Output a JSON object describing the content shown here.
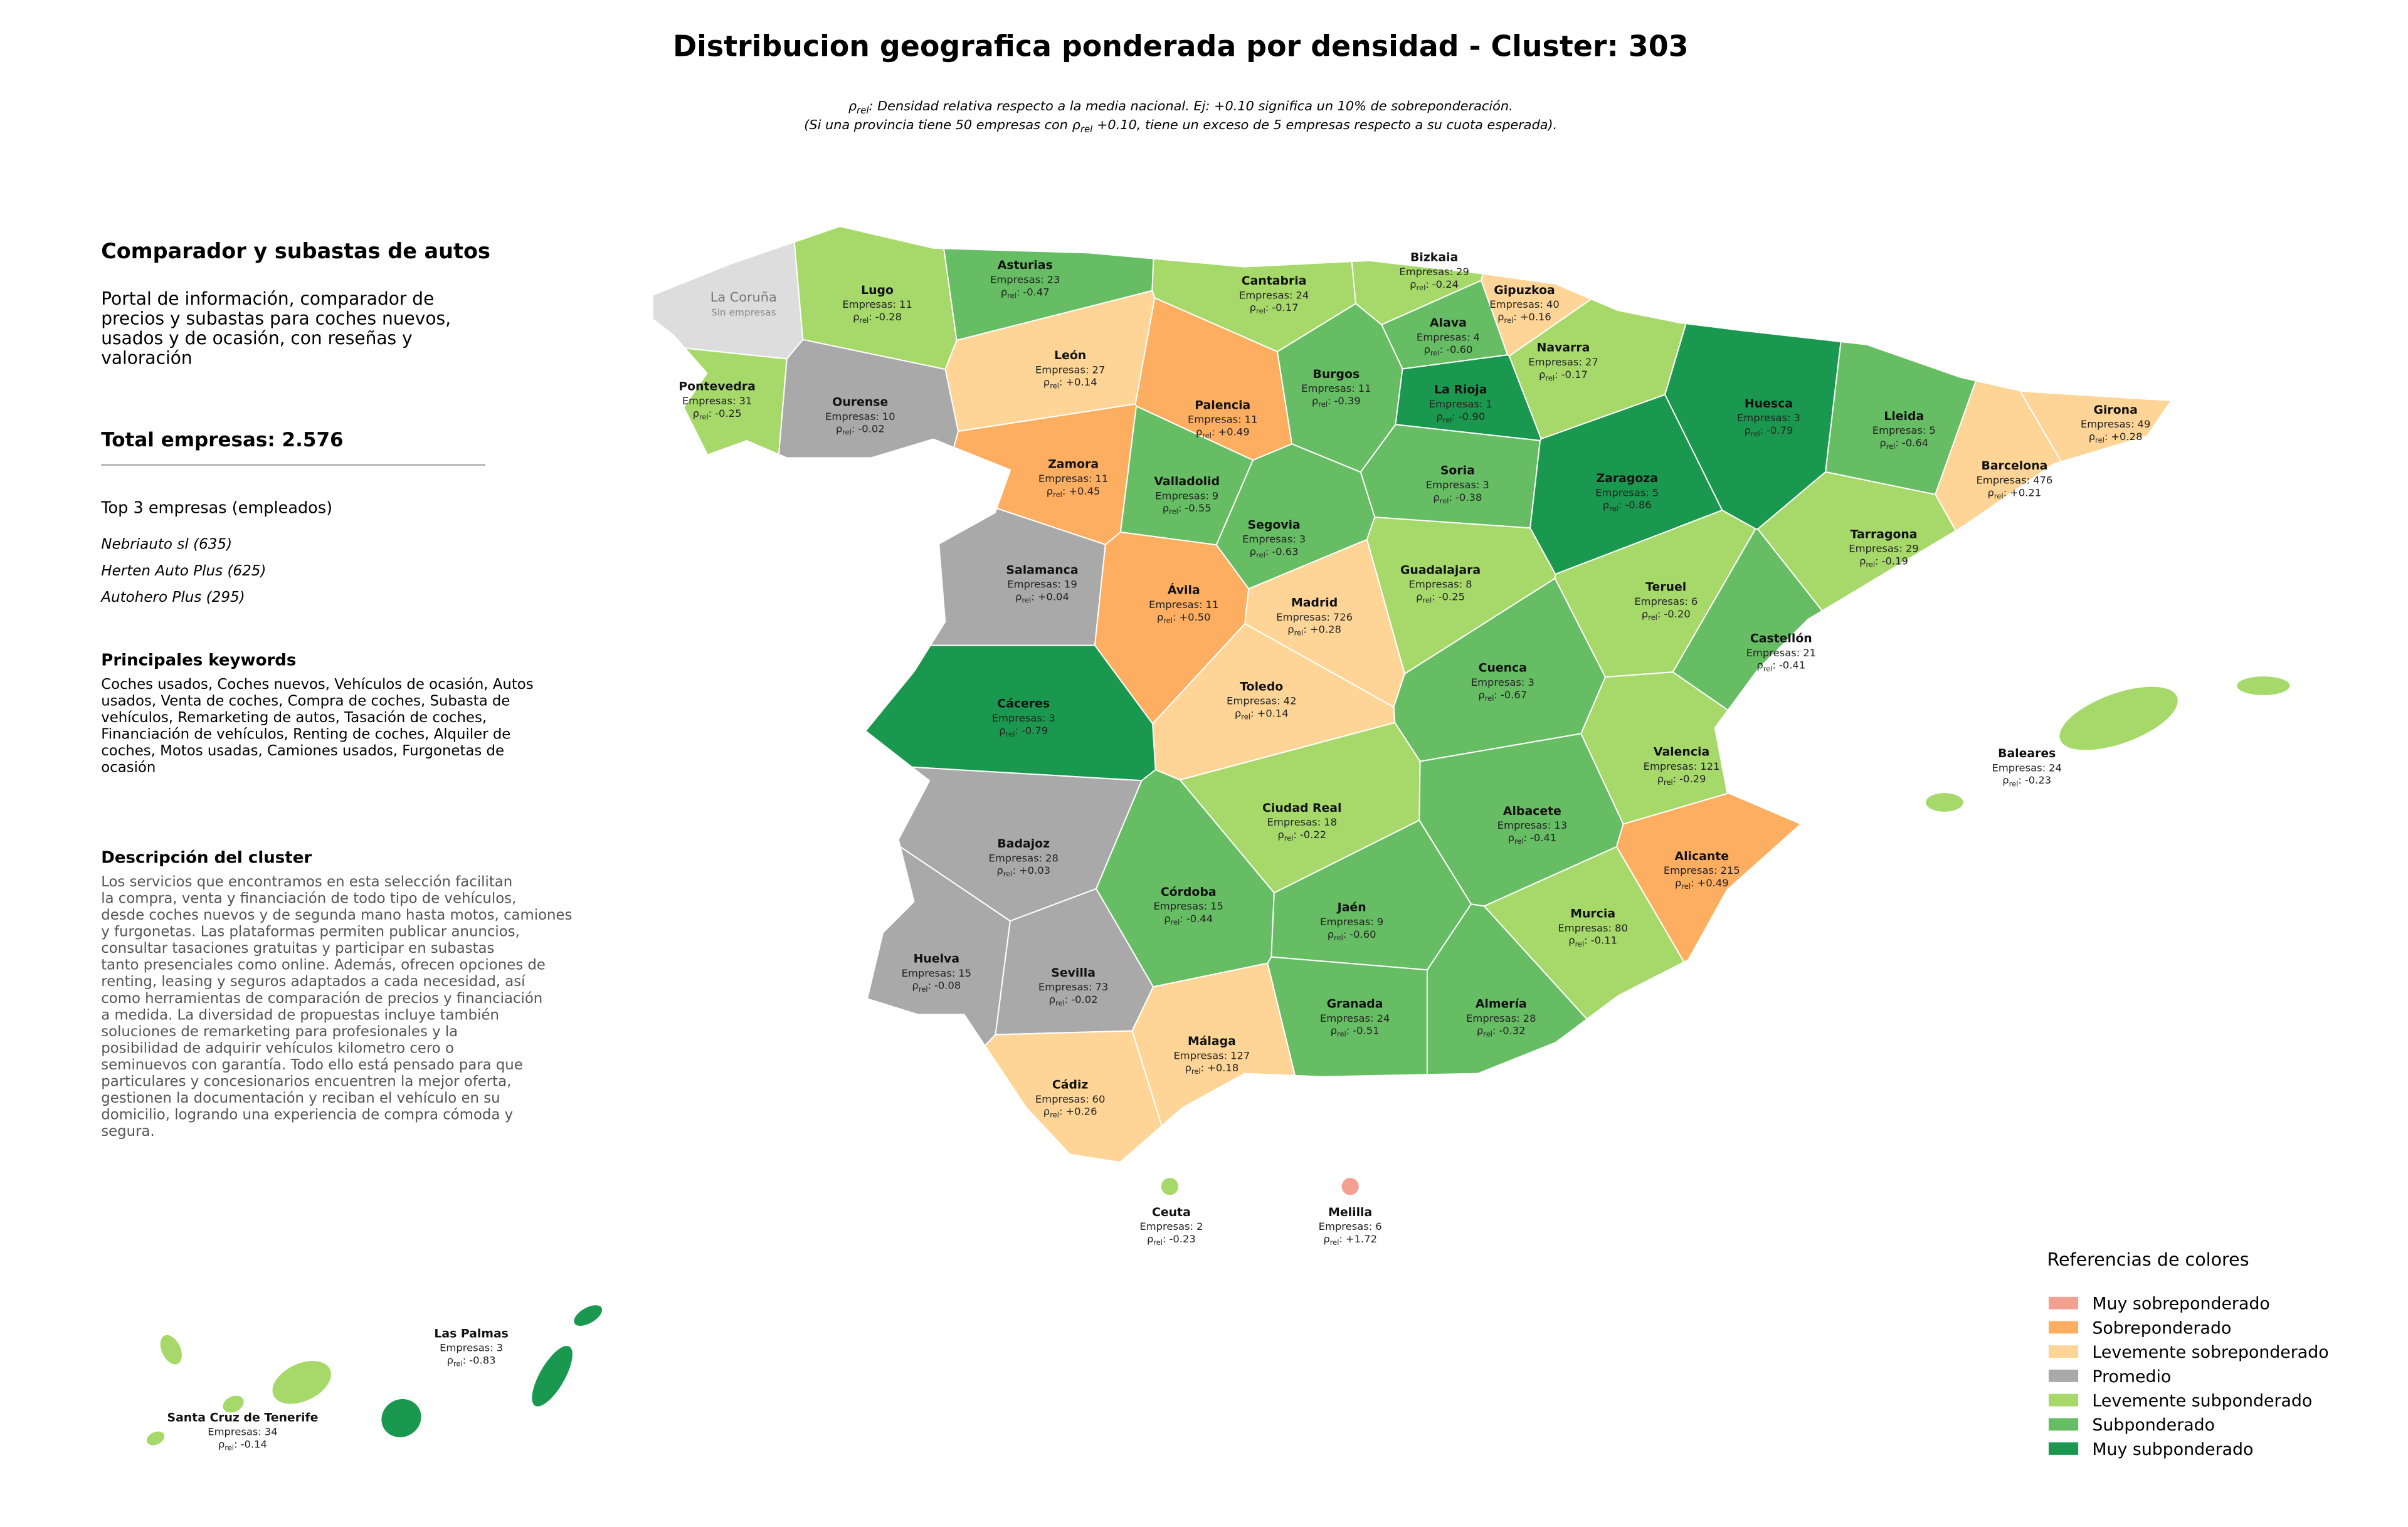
{
  "title": "Distribucion geografica ponderada por densidad - Cluster: 303",
  "symbols": {
    "rho": "ρ",
    "rel": "rel",
    "colon": ":",
    "empresas": "Empresas:"
  },
  "subtitle": {
    "line1_after": ": Densidad relativa respecto a la media nacional. Ej: +0.10 significa un 10% de sobreponderación.",
    "line2_before": "(Si una provincia tiene 50 empresas con ",
    "line2_after": " +0.10, tiene un exceso de 5 empresas respecto a su cuota esperada)."
  },
  "sidebar": {
    "heading": "Comparador y subastas de autos",
    "intro": [
      "Portal de información, comparador de",
      "precios y subastas para coches nuevos,",
      "usados y de ocasión, con reseñas y",
      "valoración"
    ],
    "total": "Total empresas: 2.576",
    "top_title": "Top 3 empresas (empleados)",
    "top": [
      "Nebriauto sl (635)",
      "Herten Auto Plus (625)",
      "Autohero Plus (295)"
    ],
    "keywords_title": "Principales keywords",
    "keywords": [
      "Coches usados, Coches nuevos, Vehículos de ocasión, Autos",
      "usados, Venta de coches, Compra de coches, Subasta de",
      "vehículos, Remarketing de autos, Tasación de coches,",
      "Financiación de vehículos, Renting de coches, Alquiler de",
      "coches, Motos usadas, Camiones usados, Furgonetas de",
      "ocasión"
    ],
    "description_title": "Descripción del cluster",
    "description": [
      "Los servicios que encontramos en esta selección facilitan",
      "la compra, venta y financiación de todo tipo de vehículos,",
      "desde coches nuevos y de segunda mano hasta motos, camiones",
      "y furgonetas. Las plataformas permiten publicar anuncios,",
      "consultar tasaciones gratuitas y participar en subastas",
      "tanto presenciales como online. Además, ofrecen opciones de",
      "renting, leasing y seguros adaptados a cada necesidad, así",
      "como herramientas de comparación de precios y financiación",
      "a medida. La diversidad de propuestas incluye también",
      "soluciones de remarketing para profesionales y la",
      "posibilidad de adquirir vehículos kilometro cero o",
      "seminuevos con garantía. Todo ello está pensado para que",
      "particulares y concesionarios encuentren la mejor oferta,",
      "gestionen la documentación y reciban el vehículo en su",
      "domicilio, logrando una experiencia de compra cómoda y",
      "segura."
    ]
  },
  "legend": {
    "title": "Referencias de colores",
    "items": [
      {
        "label": "Muy sobreponderado",
        "color": "#f4a091"
      },
      {
        "label": "Sobreponderado",
        "color": "#fdae61"
      },
      {
        "label": "Levemente sobreponderado",
        "color": "#fed596"
      },
      {
        "label": "Promedio",
        "color": "#a9a9a9"
      },
      {
        "label": "Levemente subponderado",
        "color": "#a6d96a"
      },
      {
        "label": "Subponderado",
        "color": "#66bd63"
      },
      {
        "label": "Muy subponderado",
        "color": "#1a9850"
      }
    ]
  },
  "provinces": [
    {
      "name": "La Coruña",
      "note": "Sin empresas",
      "color": "#dddddd"
    },
    {
      "name": "Lugo",
      "empresas": 11,
      "rho": "-0.28",
      "color": "#a6d96a"
    },
    {
      "name": "Asturias",
      "empresas": 23,
      "rho": "-0.47",
      "color": "#66bd63"
    },
    {
      "name": "Cantabria",
      "empresas": 24,
      "rho": "-0.17",
      "color": "#a6d96a"
    },
    {
      "name": "Bizkaia",
      "empresas": 29,
      "rho": "-0.24",
      "color": "#a6d96a"
    },
    {
      "name": "Gipuzkoa",
      "empresas": 40,
      "rho": "+0.16",
      "color": "#fed596"
    },
    {
      "name": "Alava",
      "empresas": 4,
      "rho": "-0.60",
      "color": "#66bd63"
    },
    {
      "name": "Navarra",
      "empresas": 27,
      "rho": "-0.17",
      "color": "#a6d96a"
    },
    {
      "name": "Pontevedra",
      "empresas": 31,
      "rho": "-0.25",
      "color": "#a6d96a"
    },
    {
      "name": "Ourense",
      "empresas": 10,
      "rho": "-0.02",
      "color": "#a9a9a9"
    },
    {
      "name": "León",
      "empresas": 27,
      "rho": "+0.14",
      "color": "#fed596"
    },
    {
      "name": "Palencia",
      "empresas": 11,
      "rho": "+0.49",
      "color": "#fdae61"
    },
    {
      "name": "Burgos",
      "empresas": 11,
      "rho": "-0.39",
      "color": "#66bd63"
    },
    {
      "name": "La Rioja",
      "empresas": 1,
      "rho": "-0.90",
      "color": "#1a9850"
    },
    {
      "name": "Huesca",
      "empresas": 3,
      "rho": "-0.79",
      "color": "#1a9850"
    },
    {
      "name": "Lleida",
      "empresas": 5,
      "rho": "-0.64",
      "color": "#66bd63"
    },
    {
      "name": "Girona",
      "empresas": 49,
      "rho": "+0.28",
      "color": "#fed596"
    },
    {
      "name": "Zamora",
      "empresas": 11,
      "rho": "+0.45",
      "color": "#fdae61"
    },
    {
      "name": "Valladolid",
      "empresas": 9,
      "rho": "-0.55",
      "color": "#66bd63"
    },
    {
      "name": "Soria",
      "empresas": 3,
      "rho": "-0.38",
      "color": "#66bd63"
    },
    {
      "name": "Zaragoza",
      "empresas": 5,
      "rho": "-0.86",
      "color": "#1a9850"
    },
    {
      "name": "Barcelona",
      "empresas": 476,
      "rho": "+0.21",
      "color": "#fed596"
    },
    {
      "name": "Segovia",
      "empresas": 3,
      "rho": "-0.63",
      "color": "#66bd63"
    },
    {
      "name": "Tarragona",
      "empresas": 29,
      "rho": "-0.19",
      "color": "#a6d96a"
    },
    {
      "name": "Salamanca",
      "empresas": 19,
      "rho": "+0.04",
      "color": "#a9a9a9"
    },
    {
      "name": "Guadalajara",
      "empresas": 8,
      "rho": "-0.25",
      "color": "#a6d96a"
    },
    {
      "name": "Ávila",
      "empresas": 11,
      "rho": "+0.50",
      "color": "#fdae61"
    },
    {
      "name": "Madrid",
      "empresas": 726,
      "rho": "+0.28",
      "color": "#fed596"
    },
    {
      "name": "Teruel",
      "empresas": 6,
      "rho": "-0.20",
      "color": "#a6d96a"
    },
    {
      "name": "Castellón",
      "empresas": 21,
      "rho": "-0.41",
      "color": "#66bd63"
    },
    {
      "name": "Cuenca",
      "empresas": 3,
      "rho": "-0.67",
      "color": "#66bd63"
    },
    {
      "name": "Toledo",
      "empresas": 42,
      "rho": "+0.14",
      "color": "#fed596"
    },
    {
      "name": "Cáceres",
      "empresas": 3,
      "rho": "-0.79",
      "color": "#1a9850"
    },
    {
      "name": "Valencia",
      "empresas": 121,
      "rho": "-0.29",
      "color": "#a6d96a"
    },
    {
      "name": "Ciudad Real",
      "empresas": 18,
      "rho": "-0.22",
      "color": "#a6d96a"
    },
    {
      "name": "Albacete",
      "empresas": 13,
      "rho": "-0.41",
      "color": "#66bd63"
    },
    {
      "name": "Badajoz",
      "empresas": 28,
      "rho": "+0.03",
      "color": "#a9a9a9"
    },
    {
      "name": "Alicante",
      "empresas": 215,
      "rho": "+0.49",
      "color": "#fdae61"
    },
    {
      "name": "Córdoba",
      "empresas": 15,
      "rho": "-0.44",
      "color": "#66bd63"
    },
    {
      "name": "Jaén",
      "empresas": 9,
      "rho": "-0.60",
      "color": "#66bd63"
    },
    {
      "name": "Murcia",
      "empresas": 80,
      "rho": "-0.11",
      "color": "#a6d96a"
    },
    {
      "name": "Huelva",
      "empresas": 15,
      "rho": "-0.08",
      "color": "#a9a9a9"
    },
    {
      "name": "Sevilla",
      "empresas": 73,
      "rho": "-0.02",
      "color": "#a9a9a9"
    },
    {
      "name": "Granada",
      "empresas": 24,
      "rho": "-0.51",
      "color": "#66bd63"
    },
    {
      "name": "Almería",
      "empresas": 28,
      "rho": "-0.32",
      "color": "#66bd63"
    },
    {
      "name": "Málaga",
      "empresas": 127,
      "rho": "+0.18",
      "color": "#fed596"
    },
    {
      "name": "Cádiz",
      "empresas": 60,
      "rho": "+0.26",
      "color": "#fed596"
    },
    {
      "name": "Baleares",
      "empresas": 24,
      "rho": "-0.23",
      "color": "#a6d96a"
    },
    {
      "name": "Ceuta",
      "empresas": 2,
      "rho": "-0.23",
      "color": "#a6d96a"
    },
    {
      "name": "Melilla",
      "empresas": 6,
      "rho": "+1.72",
      "color": "#f4a091"
    },
    {
      "name": "Las Palmas",
      "empresas": 3,
      "rho": "-0.83",
      "color": "#1a9850"
    },
    {
      "name": "Santa Cruz de Tenerife",
      "empresas": 34,
      "rho": "-0.14",
      "color": "#a6d96a"
    }
  ]
}
